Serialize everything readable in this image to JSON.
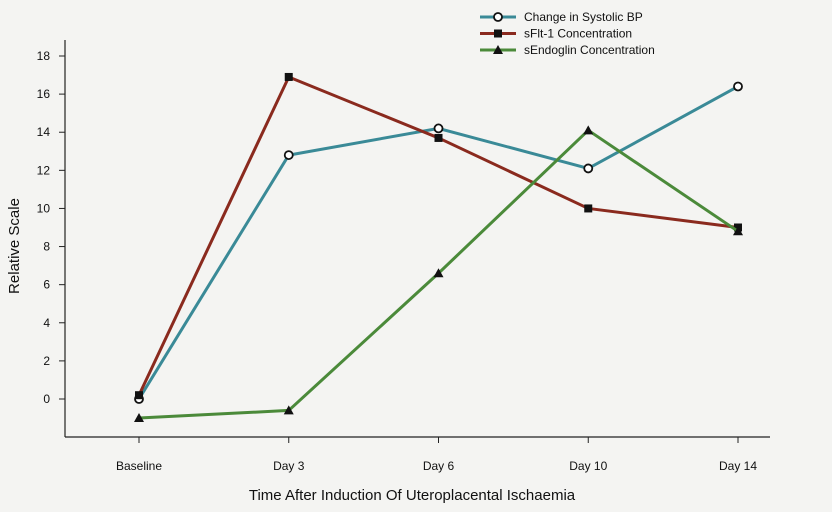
{
  "chart_data": {
    "type": "line",
    "title": "",
    "xlabel": "Time After Induction Of Uteroplacental Ischaemia",
    "ylabel": "Relative Scale",
    "categories": [
      "Baseline",
      "Day 3",
      "Day 6",
      "Day 10",
      "Day 14"
    ],
    "ylim": [
      -2,
      18
    ],
    "yticks": [
      0,
      2,
      4,
      6,
      8,
      10,
      12,
      14,
      16,
      18
    ],
    "grid": false,
    "legend_position": "top-right",
    "series": [
      {
        "name": "Change in Systolic BP",
        "values": [
          0.0,
          12.8,
          14.2,
          12.1,
          16.4
        ],
        "color": "#3a8a97",
        "marker": "open-circle"
      },
      {
        "name": "sFlt-1 Concentration",
        "values": [
          0.2,
          16.9,
          13.7,
          10.0,
          9.0
        ],
        "color": "#8a2a1e",
        "marker": "filled-square"
      },
      {
        "name": "sEndoglin Concentration",
        "values": [
          -1.0,
          -0.6,
          6.6,
          14.1,
          8.8
        ],
        "color": "#4b8a3a",
        "marker": "filled-triangle"
      }
    ]
  }
}
